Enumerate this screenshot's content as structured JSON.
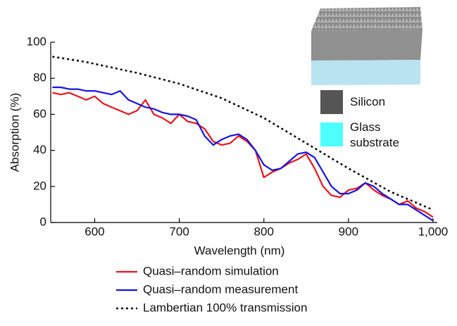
{
  "chart_data": {
    "type": "line",
    "xlabel": "Wavelength (nm)",
    "ylabel": "Absorption (%)",
    "x": [
      550,
      560,
      570,
      580,
      590,
      600,
      610,
      620,
      630,
      640,
      650,
      660,
      670,
      680,
      690,
      700,
      710,
      720,
      730,
      740,
      750,
      760,
      770,
      780,
      790,
      800,
      810,
      820,
      830,
      840,
      850,
      860,
      870,
      880,
      890,
      900,
      910,
      920,
      930,
      940,
      950,
      960,
      970,
      980,
      990,
      1000
    ],
    "series": [
      {
        "name": "Quasi–random simulation",
        "color": "#e8141c",
        "dash": "solid",
        "values": [
          72,
          71,
          72,
          70,
          68,
          70,
          66,
          64,
          62,
          60,
          62,
          68,
          60,
          58,
          55,
          60,
          56,
          55,
          52,
          45,
          43,
          44,
          48,
          45,
          40,
          25,
          28,
          30,
          33,
          35,
          38,
          30,
          20,
          15,
          14,
          18,
          19,
          22,
          18,
          15,
          13,
          10,
          12,
          8,
          6,
          3
        ]
      },
      {
        "name": "Quasi–random measurement",
        "color": "#1414e0",
        "dash": "solid",
        "values": [
          75,
          75,
          74,
          74,
          73,
          73,
          72,
          71,
          73,
          68,
          66,
          64,
          63,
          61,
          60,
          60,
          59,
          57,
          48,
          43,
          46,
          48,
          49,
          46,
          40,
          32,
          29,
          30,
          34,
          38,
          39,
          36,
          28,
          20,
          16,
          16,
          18,
          22,
          20,
          16,
          13,
          10,
          10,
          7,
          4,
          1
        ]
      },
      {
        "name": "Lambertian 100% transmission",
        "color": "#000000",
        "dash": "dotted",
        "values": [
          92,
          91.3,
          90.5,
          89.8,
          89,
          88,
          87,
          86,
          85,
          84,
          83,
          81.8,
          80.6,
          79.4,
          78.2,
          77,
          75.4,
          73.8,
          72.2,
          70.6,
          69,
          66.8,
          64.6,
          62.4,
          60.2,
          58,
          55.2,
          52.4,
          49.6,
          46.8,
          44,
          41.2,
          38.4,
          35.6,
          32.8,
          30,
          27.4,
          24.8,
          22.2,
          19.6,
          17,
          15,
          13,
          11,
          9,
          7
        ]
      }
    ],
    "xlim": [
      548,
      1005
    ],
    "xticks": [
      600,
      700,
      800,
      900,
      {
        "value": 1000,
        "label": "1,000"
      }
    ],
    "ylim": [
      0,
      100
    ],
    "yticks": [
      0,
      20,
      40,
      60,
      80,
      100
    ],
    "inset_legend": [
      {
        "label": "Silicon",
        "color": "#555555"
      },
      {
        "label": "Glass substrate",
        "color": "#4dffff"
      }
    ]
  }
}
